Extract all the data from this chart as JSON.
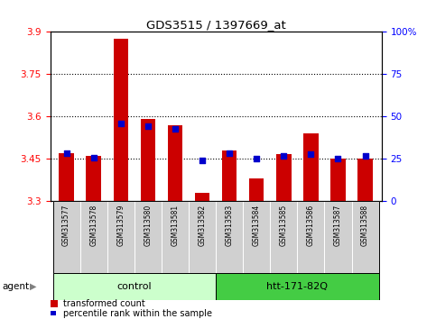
{
  "title": "GDS3515 / 1397669_at",
  "samples": [
    "GSM313577",
    "GSM313578",
    "GSM313579",
    "GSM313580",
    "GSM313581",
    "GSM313582",
    "GSM313583",
    "GSM313584",
    "GSM313585",
    "GSM313586",
    "GSM313587",
    "GSM313588"
  ],
  "red_values": [
    3.47,
    3.46,
    3.875,
    3.59,
    3.57,
    3.33,
    3.48,
    3.38,
    3.465,
    3.54,
    3.45,
    3.45
  ],
  "blue_values": [
    3.47,
    3.455,
    3.575,
    3.565,
    3.555,
    3.445,
    3.47,
    3.45,
    3.46,
    3.465,
    3.45,
    3.46
  ],
  "ylim_left": [
    3.3,
    3.9
  ],
  "ylim_right": [
    0,
    100
  ],
  "yticks_left": [
    3.3,
    3.45,
    3.6,
    3.75,
    3.9
  ],
  "yticks_right": [
    0,
    25,
    50,
    75,
    100
  ],
  "ytick_right_labels": [
    "0",
    "25",
    "50",
    "75",
    "100%"
  ],
  "grid_lines": [
    3.45,
    3.6,
    3.75
  ],
  "bar_width": 0.55,
  "bar_color": "#cc0000",
  "dot_color": "#0000cc",
  "control_label": "control",
  "treatment_label": "htt-171-82Q",
  "agent_label": "agent",
  "legend1": "transformed count",
  "legend2": "percentile rank within the sample",
  "control_color": "#ccffcc",
  "treatment_color": "#44cc44",
  "label_area_color": "#d0d0d0",
  "ybase": 3.3,
  "n_control": 6,
  "n_treatment": 6
}
